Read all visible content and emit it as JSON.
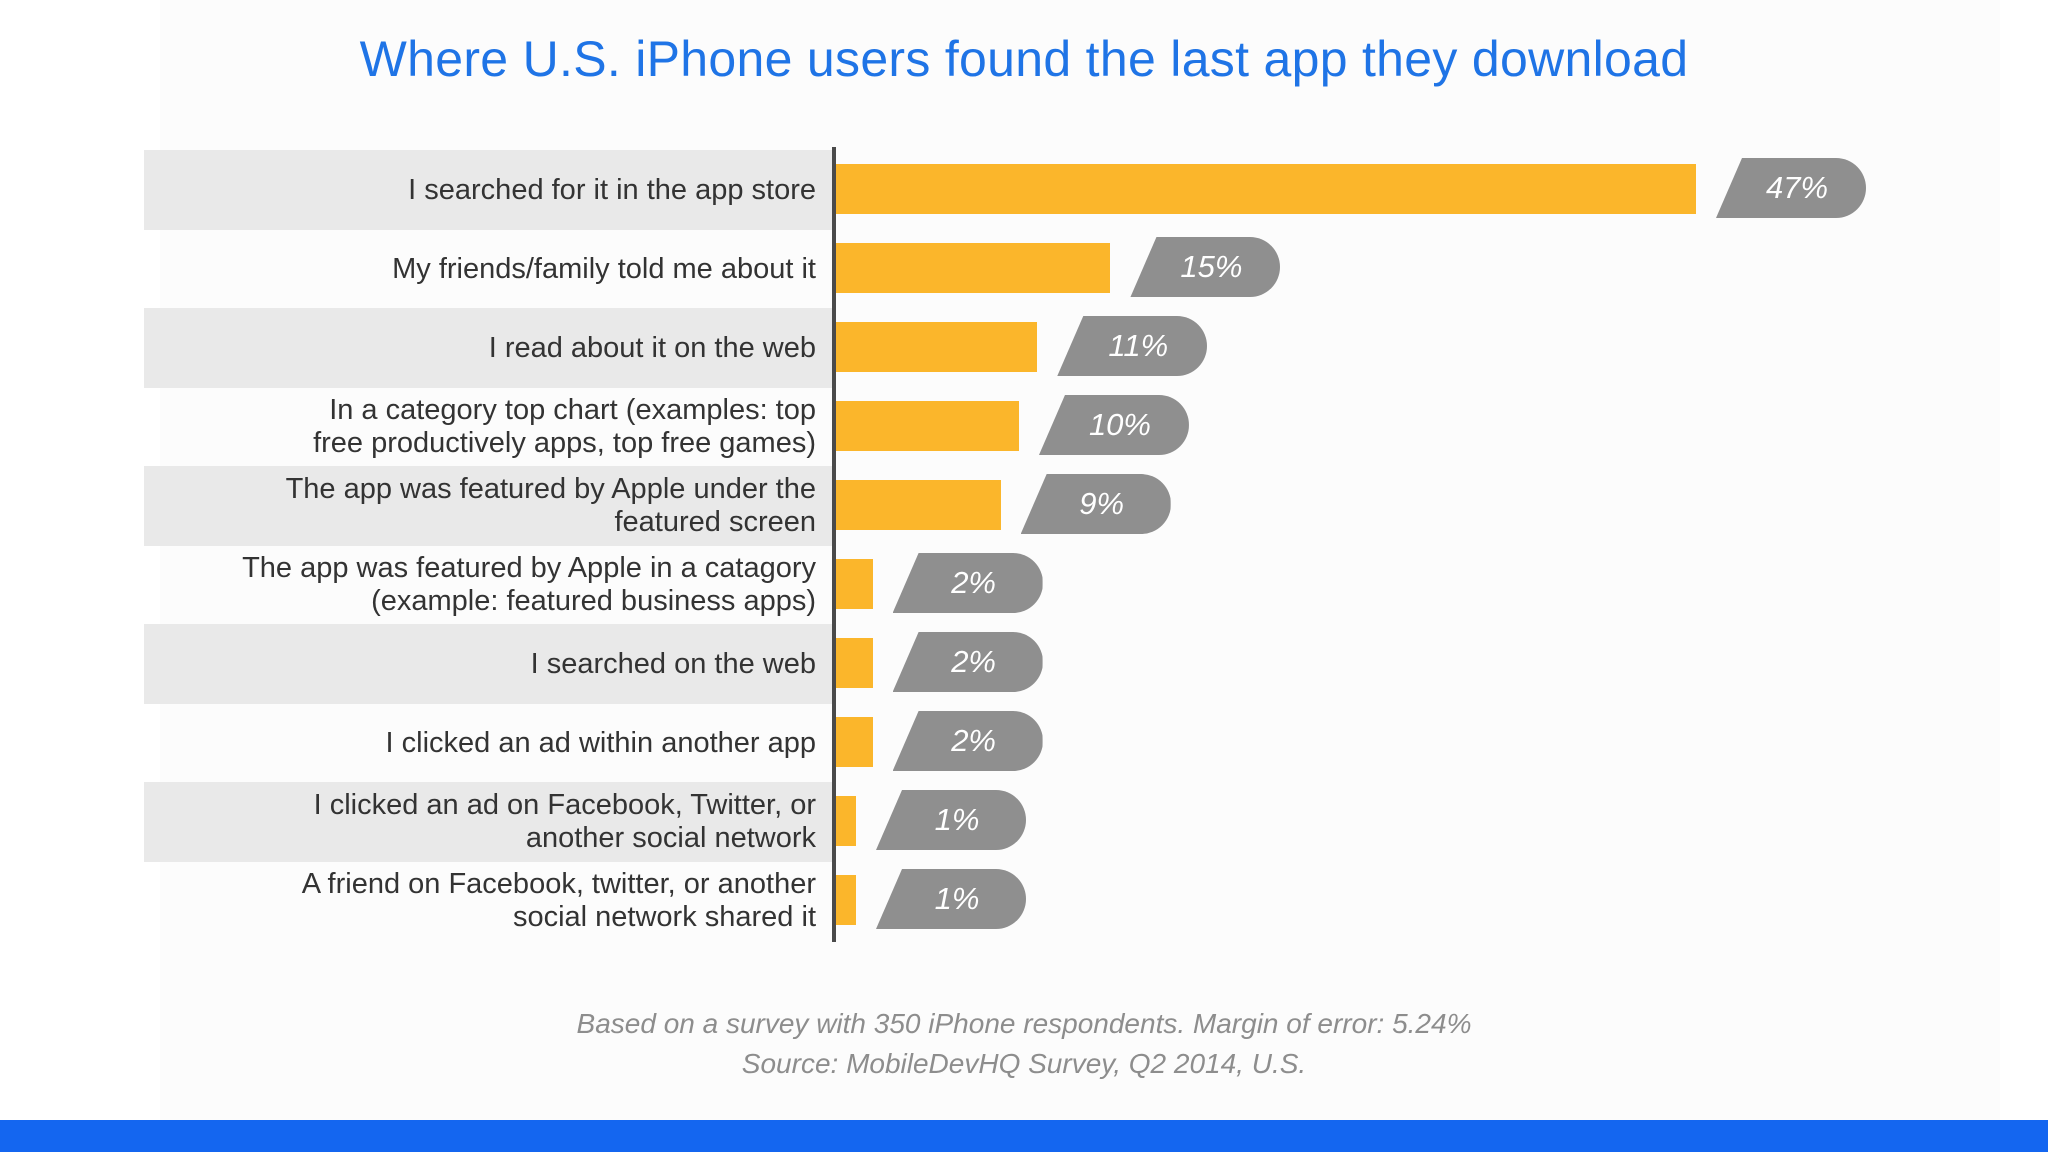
{
  "chart_data": {
    "type": "bar",
    "orientation": "horizontal",
    "title": "Where U.S. iPhone users found the last app they download",
    "categories": [
      "I searched for it in the app store",
      "My friends/family told me about it",
      "I read about it on the web",
      "In a category top chart (examples: top\nfree productively apps, top free games)",
      "The app was featured by Apple under the\nfeatured screen",
      "The app was featured by Apple in a catagory\n(example: featured business apps)",
      "I searched on the web",
      "I clicked an ad within another app",
      "I clicked an ad on Facebook, Twitter, or\nanother social network",
      "A friend on Facebook, twitter, or another\nsocial network shared it"
    ],
    "values": [
      47,
      15,
      11,
      10,
      9,
      2,
      2,
      2,
      1,
      1
    ],
    "value_labels": [
      "47%",
      "15%",
      "11%",
      "10%",
      "9%",
      "2%",
      "2%",
      "2%",
      "1%",
      "1%"
    ],
    "unit": "%",
    "xlim": [
      0,
      50
    ],
    "grid": false,
    "legend": "none"
  },
  "notes": {
    "survey": "Based on a survey with 350 iPhone respondents. Margin of error: 5.24%",
    "source": "Source: MobileDevHQ Survey, Q2 2014, U.S."
  },
  "colors": {
    "title": "#1f74e6",
    "bar": "#fbb62b",
    "label_pill": "#8f8f8f",
    "band": "#e9e9e9",
    "accent_bar": "#1466f0"
  }
}
